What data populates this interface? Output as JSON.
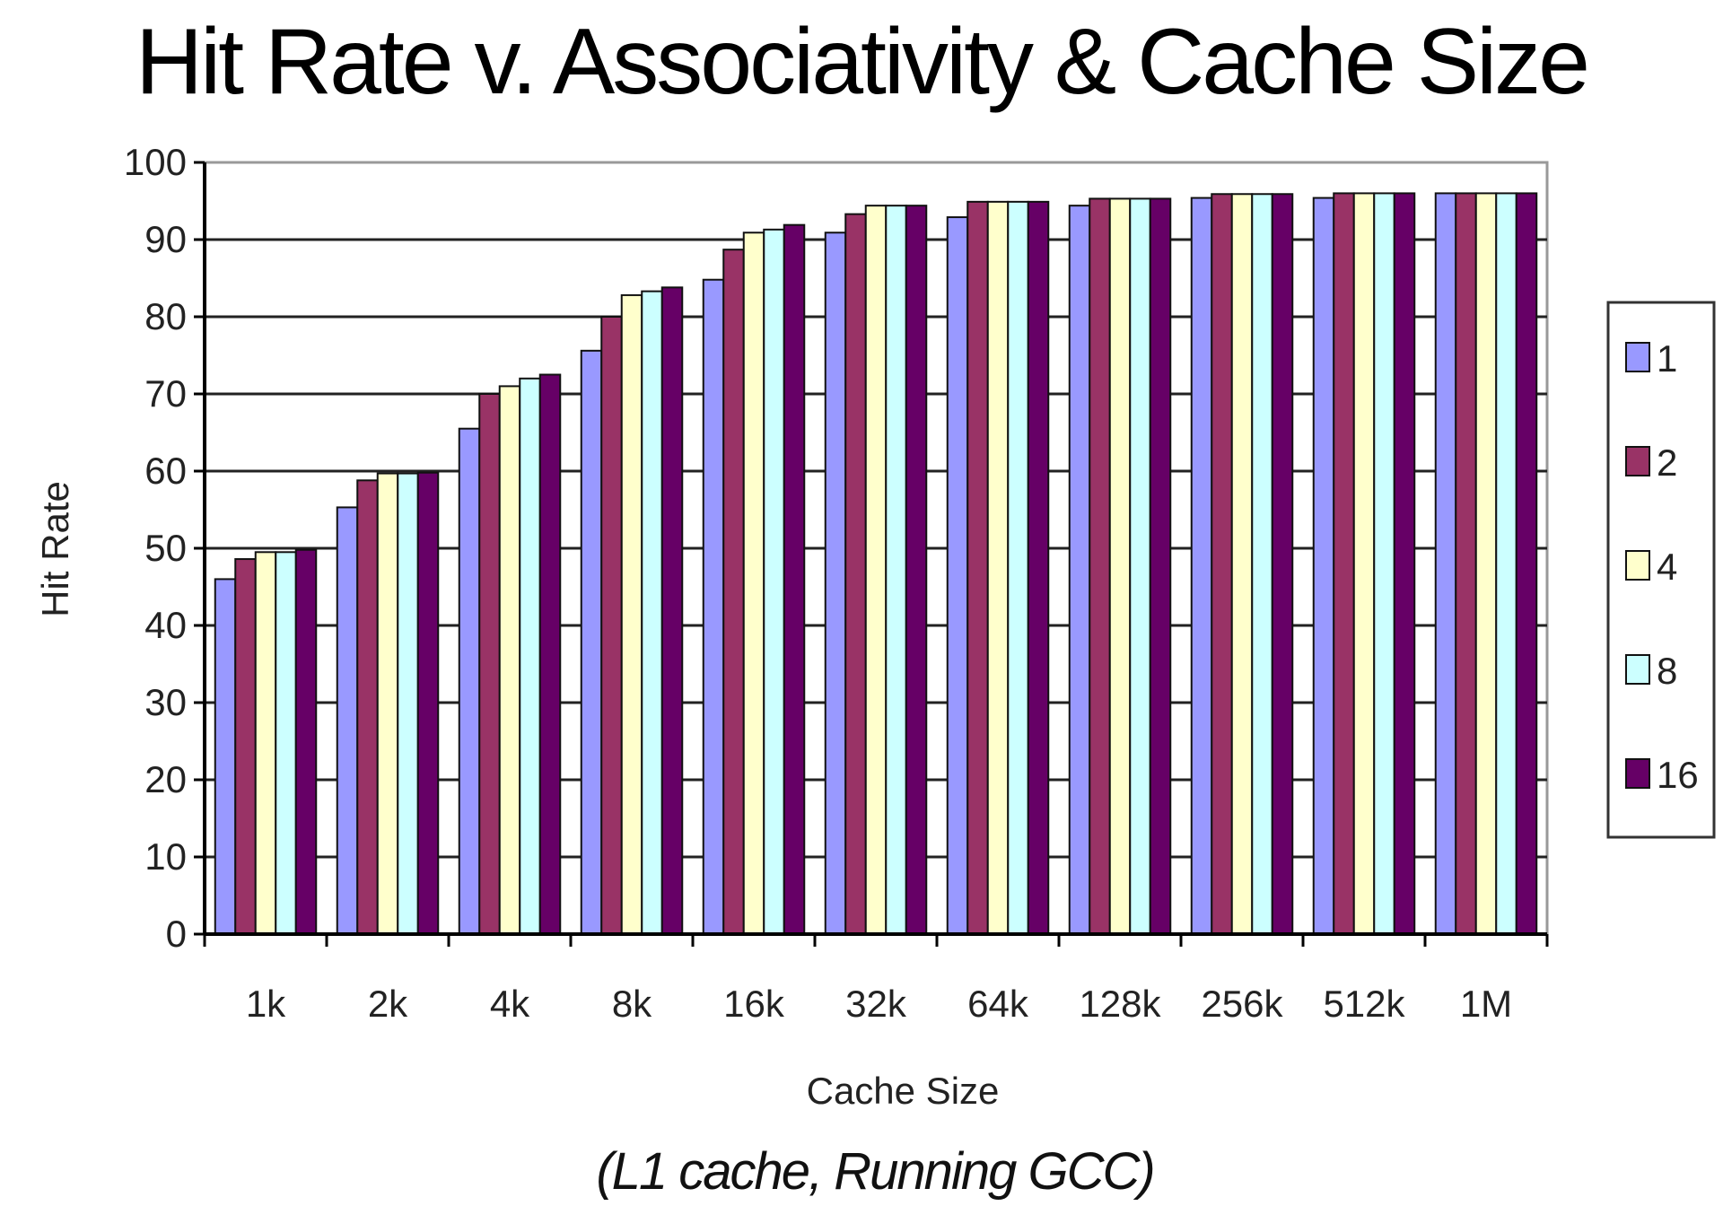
{
  "chart_data": {
    "type": "bar",
    "title": "Hit Rate v. Associativity & Cache Size",
    "subtitle": "(L1 cache, Running GCC)",
    "xlabel": "Cache Size",
    "ylabel": "Hit Rate",
    "ylim": [
      0,
      100
    ],
    "yticks": [
      0,
      10,
      20,
      30,
      40,
      50,
      60,
      70,
      80,
      90,
      100
    ],
    "grid": true,
    "legend": "right",
    "categories": [
      "1k",
      "2k",
      "4k",
      "8k",
      "16k",
      "32k",
      "64k",
      "128k",
      "256k",
      "512k",
      "1M"
    ],
    "series": [
      {
        "name": "1",
        "color": "#9999ff",
        "values": [
          46,
          55.3,
          65.5,
          75.6,
          84.8,
          90.9,
          92.9,
          94.4,
          95.4,
          95.4,
          96
        ]
      },
      {
        "name": "2",
        "color": "#993366",
        "values": [
          48.6,
          58.8,
          70,
          80,
          88.7,
          93.3,
          94.9,
          95.3,
          95.9,
          96,
          96
        ]
      },
      {
        "name": "4",
        "color": "#ffffcc",
        "values": [
          49.5,
          59.7,
          71,
          82.8,
          90.9,
          94.4,
          94.9,
          95.3,
          95.9,
          96,
          96
        ]
      },
      {
        "name": "8",
        "color": "#ccffff",
        "values": [
          49.5,
          59.7,
          72,
          83.3,
          91.3,
          94.4,
          94.9,
          95.3,
          95.9,
          96,
          96
        ]
      },
      {
        "name": "16",
        "color": "#660066",
        "values": [
          49.8,
          59.8,
          72.5,
          83.8,
          91.9,
          94.4,
          94.9,
          95.3,
          95.9,
          96,
          96
        ]
      }
    ]
  }
}
